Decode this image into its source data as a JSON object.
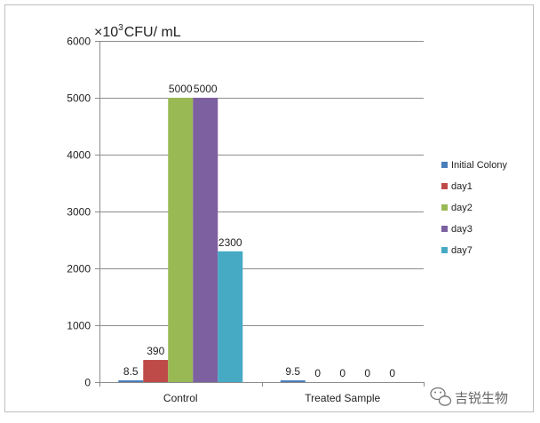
{
  "chart_data": {
    "type": "bar",
    "unit_label": {
      "prefix": "×10",
      "exponent": "3",
      "suffix": "CFU/ mL"
    },
    "categories": [
      "Control",
      "Treated Sample"
    ],
    "series": [
      {
        "name": "Initial Colony",
        "color": "#4a7ebb",
        "values": [
          8.5,
          9.5
        ],
        "labels": [
          "8.5",
          "9.5"
        ]
      },
      {
        "name": "day1",
        "color": "#be4b48",
        "values": [
          390,
          0
        ],
        "labels": [
          "390",
          "0"
        ]
      },
      {
        "name": "day2",
        "color": "#98b954",
        "values": [
          5000,
          0
        ],
        "labels": [
          "5000",
          "0"
        ]
      },
      {
        "name": "day3",
        "color": "#7d60a0",
        "values": [
          5000,
          0
        ],
        "labels": [
          "5000",
          "0"
        ]
      },
      {
        "name": "day7",
        "color": "#46aac5",
        "values": [
          2300,
          0
        ],
        "labels": [
          "2300",
          "0"
        ]
      }
    ],
    "ylim": [
      0,
      6000
    ],
    "yticks": [
      "0",
      "1000",
      "2000",
      "3000",
      "4000",
      "5000",
      "6000"
    ],
    "grid": true,
    "legend_position": "right"
  },
  "watermark": {
    "icon": "wechat-icon",
    "text": "吉锐生物"
  }
}
